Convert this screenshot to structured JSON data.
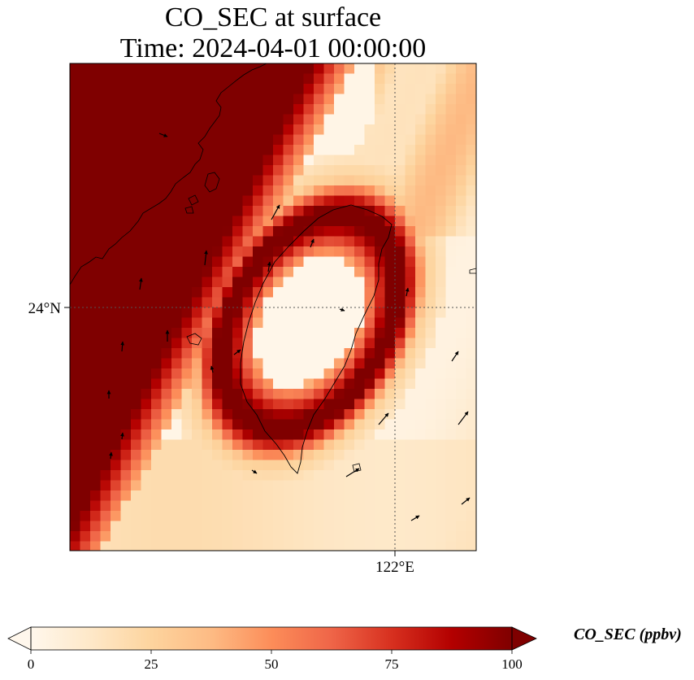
{
  "chart_data": {
    "type": "heatmap",
    "title": "CO_SEC at surface",
    "subtitle": "Time: 2024-04-01 00:00:00",
    "variable": "CO_SEC",
    "xticks": [
      {
        "value": 122,
        "label": "122°E"
      }
    ],
    "yticks": [
      {
        "value": 24,
        "label": "24°N"
      }
    ],
    "extent": {
      "lon": [
        120.95,
        122.25
      ],
      "lat": [
        22.45,
        25.05
      ]
    },
    "grid_lines": "dotted at 122°E and 24°N",
    "colorbar": {
      "label": "CO_SEC (ppbv)",
      "min": 0,
      "max": 100,
      "ticks": [
        0,
        25,
        50,
        75,
        100
      ],
      "extend": "both",
      "colormap": [
        "#fff7ec",
        "#fee8c8",
        "#fdd49e",
        "#fdbb84",
        "#fc8d59",
        "#ef6548",
        "#d7301f",
        "#b30000",
        "#7f0000"
      ]
    },
    "features": [
      "plume above 100 ppbv along the coast in the northwest corner",
      "ring above 75 ppbv around the island with low values inside",
      "low-value band between the northwest plume and the ring",
      "wind vectors drawn as black arrows"
    ]
  }
}
